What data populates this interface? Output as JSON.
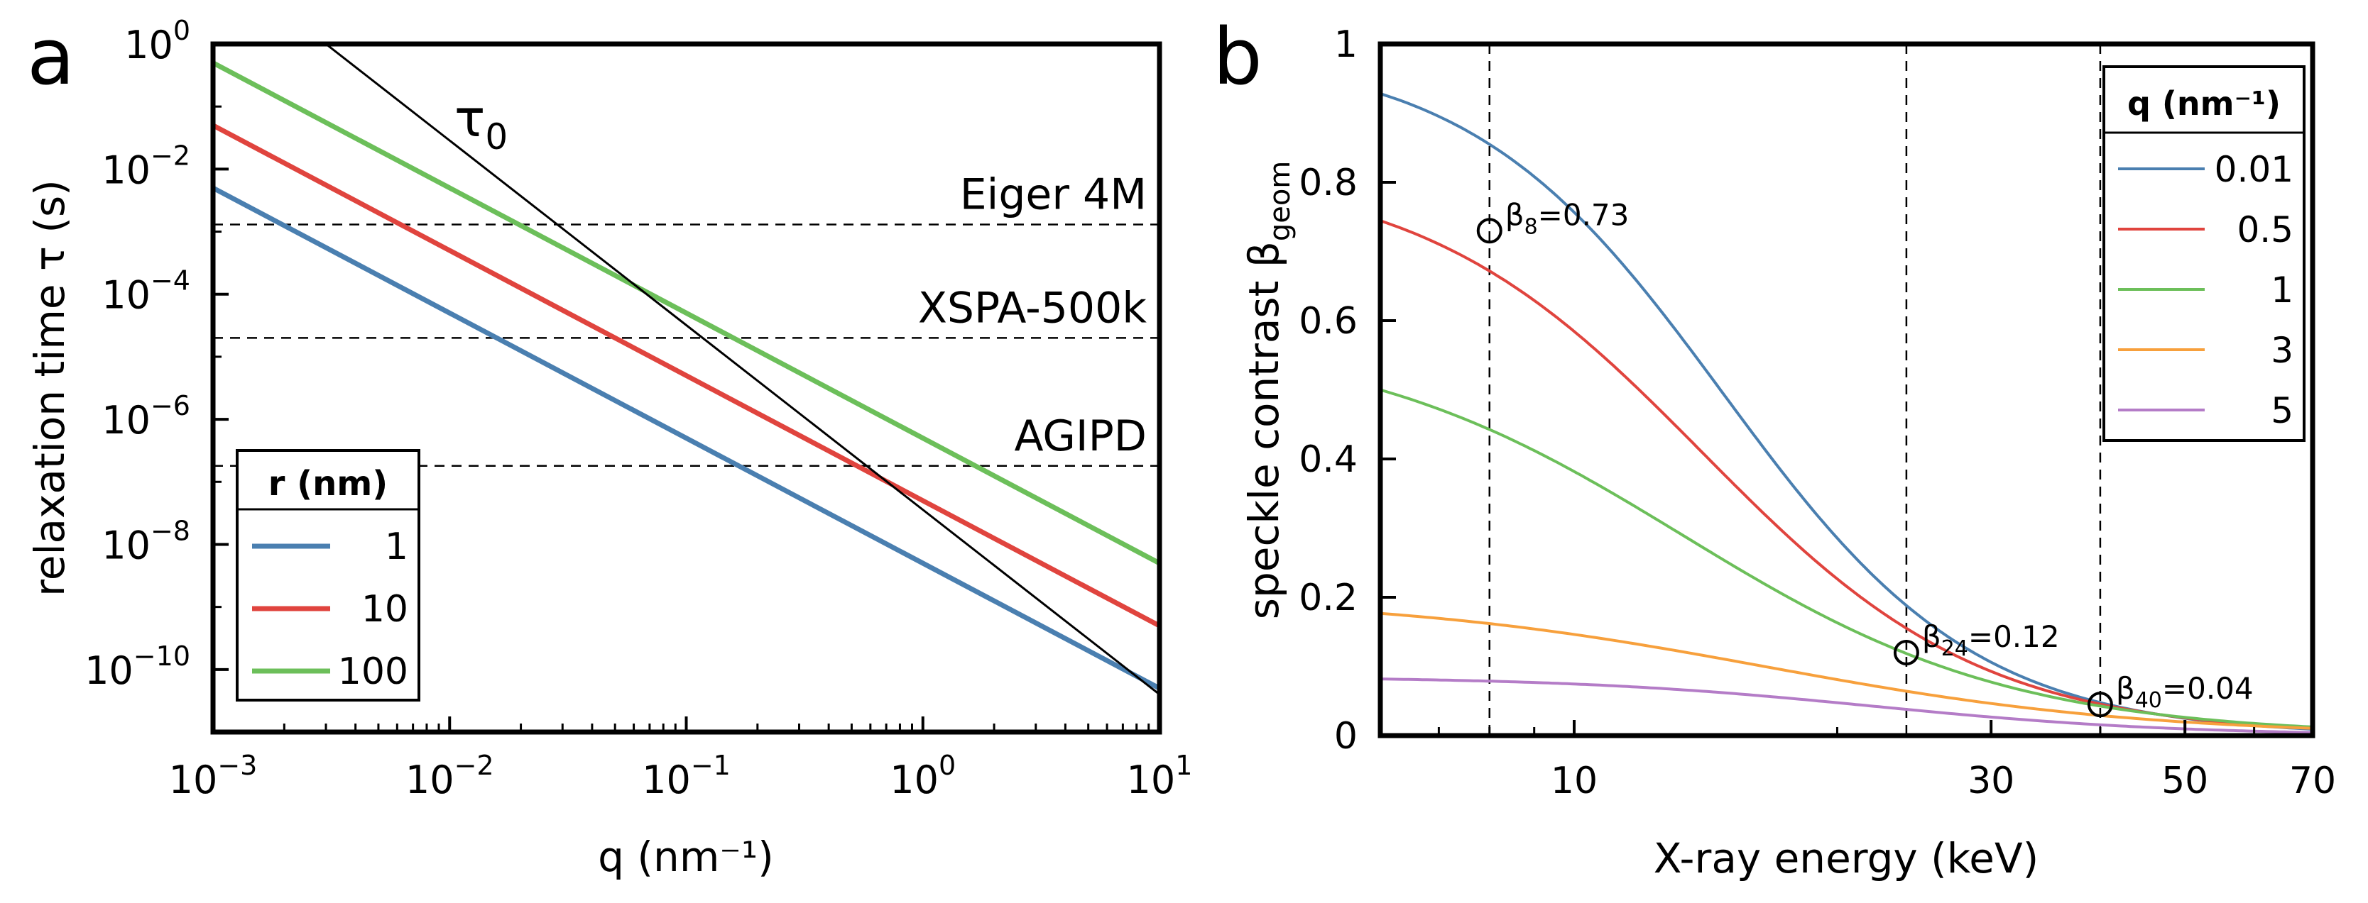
{
  "chart_data": [
    {
      "panel": "a",
      "type": "line",
      "xscale": "log",
      "yscale": "log",
      "xlim": [
        0.001,
        10
      ],
      "ylim": [
        1e-11,
        1
      ],
      "xlabel": "q (nm⁻¹)",
      "ylabel": "relaxation time τ (s)",
      "xticks": [
        {
          "value": 0.001,
          "base": "10",
          "exp": "−3"
        },
        {
          "value": 0.01,
          "base": "10",
          "exp": "−2"
        },
        {
          "value": 0.1,
          "base": "10",
          "exp": "−1"
        },
        {
          "value": 1,
          "base": "10",
          "exp": "0"
        },
        {
          "value": 10,
          "base": "10",
          "exp": "1"
        }
      ],
      "yticks": [
        {
          "value": 1,
          "base": "10",
          "exp": "0"
        },
        {
          "value": 0.01,
          "base": "10",
          "exp": "−2"
        },
        {
          "value": 0.0001,
          "base": "10",
          "exp": "−4"
        },
        {
          "value": 1e-06,
          "base": "10",
          "exp": "−6"
        },
        {
          "value": 1e-08,
          "base": "10",
          "exp": "−8"
        },
        {
          "value": 1e-10,
          "base": "10",
          "exp": "−10"
        }
      ],
      "legend": {
        "title": "r (nm)",
        "position": "bottom-left"
      },
      "series": [
        {
          "name": "1",
          "color": "#4a7fb0",
          "x": [
            0.001,
            10
          ],
          "y": [
            0.005,
            5e-11
          ]
        },
        {
          "name": "10",
          "color": "#e0443e",
          "x": [
            0.001,
            10
          ],
          "y": [
            0.05,
            5e-10
          ]
        },
        {
          "name": "100",
          "color": "#6cbf5a",
          "x": [
            0.001,
            10
          ],
          "y": [
            0.5,
            5e-09
          ]
        }
      ],
      "reference_line": {
        "label": "τ",
        "label_sub": "0",
        "color": "#000000",
        "x": [
          0.003,
          10
        ],
        "y": [
          1,
          4e-11
        ]
      },
      "detector_lines": [
        {
          "label": "Eiger 4M",
          "y": 0.0013
        },
        {
          "label": "XSPA-500k",
          "y": 2e-05
        },
        {
          "label": "AGIPD",
          "y": 1.8e-07
        }
      ]
    },
    {
      "panel": "b",
      "type": "line",
      "xscale": "log",
      "yscale": "linear",
      "xlim": [
        6,
        70
      ],
      "ylim": [
        0,
        1
      ],
      "xlabel": "X-ray energy (keV)",
      "ylabel": "speckle contrast β",
      "ylabel_sub": "geom",
      "xticks": [
        {
          "value": 10,
          "label": "10"
        },
        {
          "value": 30,
          "label": "30"
        },
        {
          "value": 50,
          "label": "50"
        },
        {
          "value": 70,
          "label": "70"
        }
      ],
      "yticks": [
        {
          "value": 0,
          "label": "0"
        },
        {
          "value": 0.2,
          "label": "0.2"
        },
        {
          "value": 0.4,
          "label": "0.4"
        },
        {
          "value": 0.6,
          "label": "0.6"
        },
        {
          "value": 0.8,
          "label": "0.8"
        },
        {
          "value": 1,
          "label": "1"
        }
      ],
      "legend": {
        "title": "q (nm⁻¹)",
        "position": "top-right"
      },
      "energy_markers": [
        8,
        24,
        40
      ],
      "series": [
        {
          "name": "0.01",
          "color": "#4a7fb0",
          "beta0": 0.99,
          "E0": 14.8,
          "n": 3.0
        },
        {
          "name": "0.5",
          "color": "#e0443e",
          "beta0": 0.82,
          "E0": 14.0,
          "n": 2.7
        },
        {
          "name": "1",
          "color": "#6cbf5a",
          "beta0": 0.58,
          "E0": 13.3,
          "n": 2.3
        },
        {
          "name": "3",
          "color": "#f7a03c",
          "beta0": 0.2,
          "E0": 16.5,
          "n": 2.0
        },
        {
          "name": "5",
          "color": "#b47cc7",
          "beta0": 0.085,
          "E0": 22.0,
          "n": 2.5
        }
      ],
      "annotations": [
        {
          "sym": "β",
          "sub": "8",
          "value": "=0.73",
          "x": 8,
          "y": 0.73
        },
        {
          "sym": "β",
          "sub": "24",
          "value": "=0.12",
          "x": 24,
          "y": 0.12
        },
        {
          "sym": "β",
          "sub": "40",
          "value": "=0.04",
          "x": 40,
          "y": 0.045
        }
      ]
    }
  ],
  "panel_labels": {
    "a": "a",
    "b": "b"
  }
}
